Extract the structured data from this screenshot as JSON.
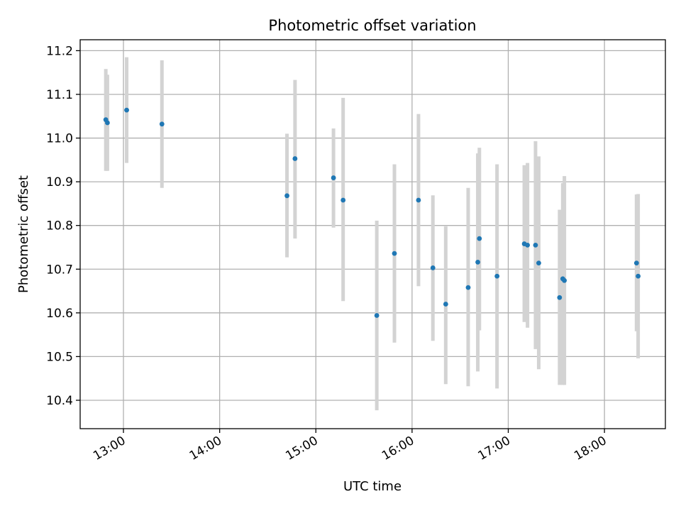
{
  "chart_data": {
    "type": "scatter",
    "title": "Photometric offset variation",
    "xlabel": "UTC time",
    "ylabel": "Photometric offset",
    "xlim": [
      "12:33",
      "18:38"
    ],
    "ylim": [
      10.335,
      11.225
    ],
    "x_ticks": [
      "13:00",
      "14:00",
      "15:00",
      "16:00",
      "17:00",
      "18:00"
    ],
    "y_ticks": [
      "10.4",
      "10.5",
      "10.6",
      "10.7",
      "10.8",
      "10.9",
      "11.0",
      "11.1",
      "11.2"
    ],
    "grid": true,
    "colors": {
      "marker": "#1f77b4",
      "errorbar": "#d3d3d3",
      "grid": "#b0b0b0"
    },
    "series": [
      {
        "points": [
          {
            "x": "12:49",
            "y": 11.042,
            "lo": 10.925,
            "hi": 11.158
          },
          {
            "x": "12:50",
            "y": 11.035,
            "lo": 10.925,
            "hi": 11.145
          },
          {
            "x": "13:02",
            "y": 11.064,
            "lo": 10.943,
            "hi": 11.185
          },
          {
            "x": "13:24",
            "y": 11.032,
            "lo": 10.886,
            "hi": 11.178
          },
          {
            "x": "14:42",
            "y": 10.868,
            "lo": 10.727,
            "hi": 11.01
          },
          {
            "x": "14:47",
            "y": 10.953,
            "lo": 10.77,
            "hi": 11.133
          },
          {
            "x": "15:11",
            "y": 10.909,
            "lo": 10.795,
            "hi": 11.022
          },
          {
            "x": "15:17",
            "y": 10.858,
            "lo": 10.627,
            "hi": 11.092
          },
          {
            "x": "15:38",
            "y": 10.594,
            "lo": 10.377,
            "hi": 10.811
          },
          {
            "x": "15:49",
            "y": 10.736,
            "lo": 10.532,
            "hi": 10.94
          },
          {
            "x": "16:04",
            "y": 10.858,
            "lo": 10.661,
            "hi": 11.055
          },
          {
            "x": "16:13",
            "y": 10.703,
            "lo": 10.536,
            "hi": 10.869
          },
          {
            "x": "16:21",
            "y": 10.62,
            "lo": 10.437,
            "hi": 10.798
          },
          {
            "x": "16:35",
            "y": 10.658,
            "lo": 10.432,
            "hi": 10.886
          },
          {
            "x": "16:41",
            "y": 10.716,
            "lo": 10.466,
            "hi": 10.965
          },
          {
            "x": "16:42",
            "y": 10.77,
            "lo": 10.56,
            "hi": 10.978
          },
          {
            "x": "16:53",
            "y": 10.684,
            "lo": 10.427,
            "hi": 10.94
          },
          {
            "x": "17:10",
            "y": 10.758,
            "lo": 10.579,
            "hi": 10.938
          },
          {
            "x": "17:12",
            "y": 10.755,
            "lo": 10.566,
            "hi": 10.943
          },
          {
            "x": "17:17",
            "y": 10.755,
            "lo": 10.517,
            "hi": 10.993
          },
          {
            "x": "17:19",
            "y": 10.714,
            "lo": 10.471,
            "hi": 10.958
          },
          {
            "x": "17:32",
            "y": 10.635,
            "lo": 10.435,
            "hi": 10.836
          },
          {
            "x": "17:34",
            "y": 10.678,
            "lo": 10.435,
            "hi": 10.897
          },
          {
            "x": "17:35",
            "y": 10.674,
            "lo": 10.435,
            "hi": 10.913
          },
          {
            "x": "18:20",
            "y": 10.714,
            "lo": 10.558,
            "hi": 10.871
          },
          {
            "x": "18:21",
            "y": 10.684,
            "lo": 10.496,
            "hi": 10.872
          }
        ]
      }
    ]
  }
}
